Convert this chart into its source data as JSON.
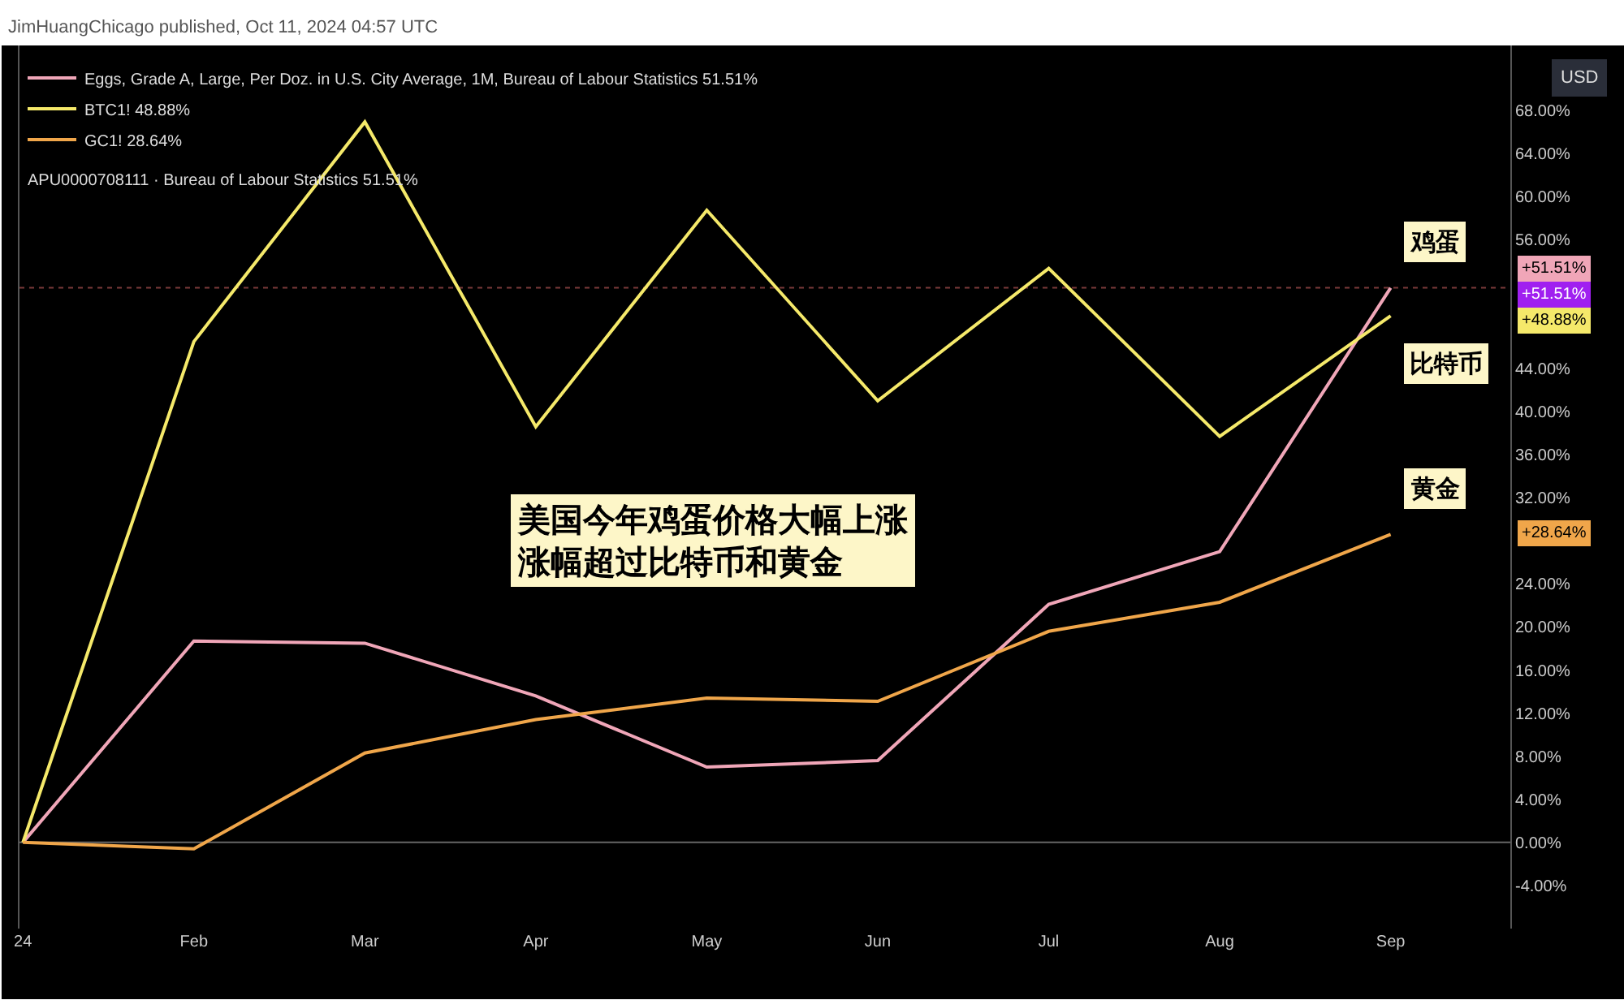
{
  "chart_data": {
    "type": "line",
    "title": "JimHuangChicago published, Oct 11, 2024 04:57 UTC",
    "categories": [
      "24",
      "Feb",
      "Mar",
      "Apr",
      "May",
      "Jun",
      "Jul",
      "Aug",
      "Sep"
    ],
    "series": [
      {
        "name": "Eggs, Grade A, Large, Per Doz. in U.S. City Average, 1M, Bureau of Labour Statistics 51.51%",
        "color": "#f0a6b8",
        "values": [
          0,
          18.7,
          18.5,
          13.6,
          7.0,
          7.6,
          22.1,
          27.0,
          51.5
        ]
      },
      {
        "name": "BTC1! 48.88%",
        "color": "#f5e96a",
        "values": [
          0,
          46.5,
          66.9,
          38.6,
          58.7,
          41.0,
          53.3,
          37.7,
          48.9
        ]
      },
      {
        "name": "GC1! 28.64%",
        "color": "#f0a64a",
        "values": [
          0,
          -0.6,
          8.3,
          11.4,
          13.4,
          13.1,
          19.6,
          22.3,
          28.6
        ]
      }
    ],
    "ylim": [
      -8,
      74
    ],
    "yticks": [
      {
        "value": -4,
        "label": "-4.00%"
      },
      {
        "value": 0,
        "label": "0.00%"
      },
      {
        "value": 4,
        "label": "4.00%"
      },
      {
        "value": 8,
        "label": "8.00%"
      },
      {
        "value": 12,
        "label": "12.00%"
      },
      {
        "value": 16,
        "label": "16.00%"
      },
      {
        "value": 20,
        "label": "20.00%"
      },
      {
        "value": 24,
        "label": "24.00%"
      },
      {
        "value": 32,
        "label": "32.00%"
      },
      {
        "value": 36,
        "label": "36.00%"
      },
      {
        "value": 40,
        "label": "40.00%"
      },
      {
        "value": 44,
        "label": "44.00%"
      },
      {
        "value": 56,
        "label": "56.00%"
      },
      {
        "value": 60,
        "label": "60.00%"
      },
      {
        "value": 64,
        "label": "64.00%"
      },
      {
        "value": 68,
        "label": "68.00%"
      }
    ],
    "ref_lines": [
      {
        "axis": "y",
        "value": 51.51,
        "color": "#7a3a3a",
        "line_style": "dotted"
      },
      {
        "axis": "y",
        "value": 0,
        "color": "#666666",
        "line_style": "solid"
      }
    ],
    "annotations": [
      "美国今年鸡蛋价格大幅上涨涨幅超过比特币和黄金",
      "USD",
      "APU0000708111 · Bureau of Labour Statistics 51.51%",
      "+51.51%",
      "+51.51%",
      "+48.88%",
      "+28.64%",
      {
        "text": "鸡蛋",
        "x": "Sep",
        "y": 51.51
      },
      {
        "text": "比特币",
        "x": "Sep",
        "y": 48.88
      },
      {
        "text": "黄金",
        "x": "Sep",
        "y": 28.64
      }
    ],
    "grid": false,
    "legend": "top left",
    "marker": "none",
    "line_style": "solid"
  }
}
